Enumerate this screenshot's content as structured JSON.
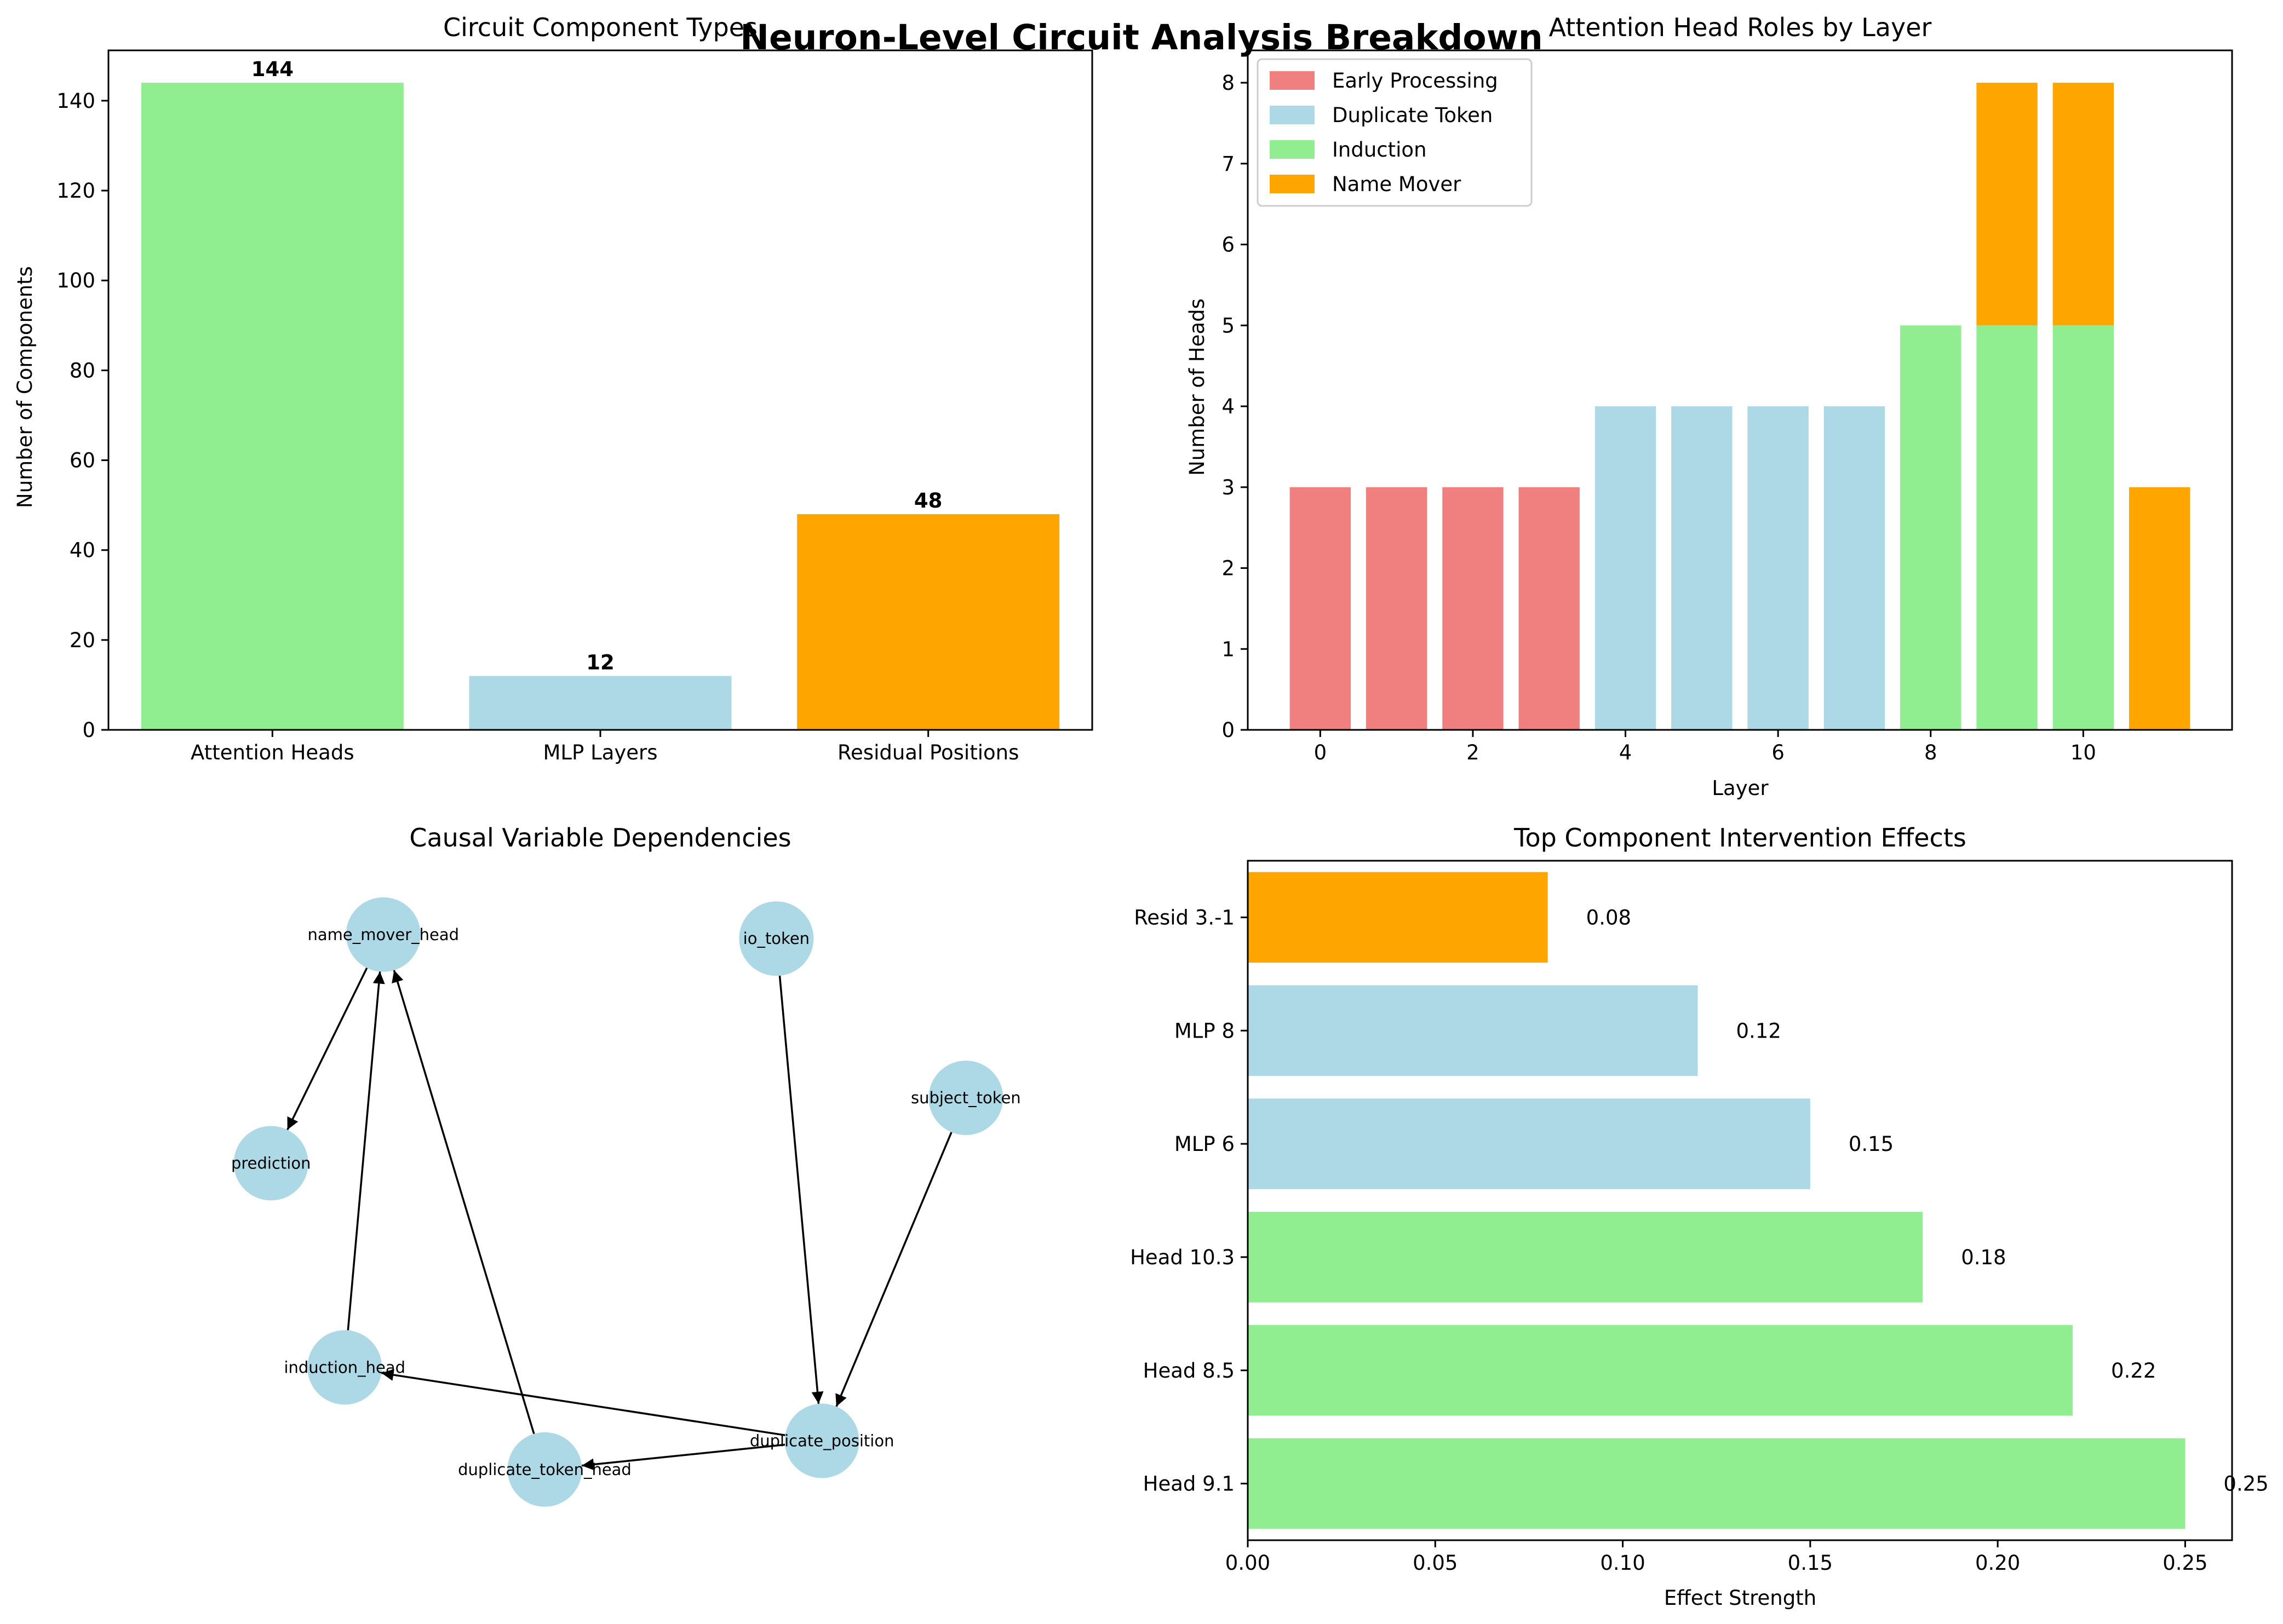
{
  "figure": {
    "suptitle": "Neuron-Level Circuit Analysis Breakdown"
  },
  "chart_data": [
    {
      "type": "bar",
      "title": "Circuit Component Types",
      "xlabel": "",
      "ylabel": "Number of Components",
      "categories": [
        "Attention Heads",
        "MLP Layers",
        "Residual Positions"
      ],
      "values": [
        144,
        12,
        48
      ],
      "value_labels": [
        "144",
        "12",
        "48"
      ],
      "colors": [
        "#90ee90",
        "#add8e6",
        "#ffa500"
      ],
      "ylim": [
        0,
        151.2
      ],
      "yticks": [
        0,
        20,
        40,
        60,
        80,
        100,
        120,
        140
      ],
      "ytick_labels": [
        "0",
        "20",
        "40",
        "60",
        "80",
        "100",
        "120",
        "140"
      ]
    },
    {
      "type": "bar",
      "stacked": true,
      "title": "Attention Head Roles by Layer",
      "xlabel": "Layer",
      "ylabel": "Number of Heads",
      "x": [
        0,
        1,
        2,
        3,
        4,
        5,
        6,
        7,
        8,
        9,
        10,
        11
      ],
      "xlim": [
        -0.95,
        11.95
      ],
      "ylim": [
        0,
        8.4
      ],
      "xticks": [
        0,
        2,
        4,
        6,
        8,
        10
      ],
      "xtick_labels": [
        "0",
        "2",
        "4",
        "6",
        "8",
        "10"
      ],
      "yticks": [
        0,
        1,
        2,
        3,
        4,
        5,
        6,
        7,
        8
      ],
      "ytick_labels": [
        "0",
        "1",
        "2",
        "3",
        "4",
        "5",
        "6",
        "7",
        "8"
      ],
      "legend_position": "top-left",
      "series": [
        {
          "name": "Early Processing",
          "color": "#f08080",
          "values": [
            3,
            3,
            3,
            3,
            0,
            0,
            0,
            0,
            0,
            0,
            0,
            0
          ]
        },
        {
          "name": "Duplicate Token",
          "color": "#add8e6",
          "values": [
            0,
            0,
            0,
            0,
            4,
            4,
            4,
            4,
            0,
            0,
            0,
            0
          ]
        },
        {
          "name": "Induction",
          "color": "#90ee90",
          "values": [
            0,
            0,
            0,
            0,
            0,
            0,
            0,
            0,
            5,
            5,
            5,
            0
          ]
        },
        {
          "name": "Name Mover",
          "color": "#ffa500",
          "values": [
            0,
            0,
            0,
            0,
            0,
            0,
            0,
            0,
            0,
            3,
            3,
            3
          ]
        }
      ]
    },
    {
      "type": "graph",
      "title": "Causal Variable Dependencies",
      "node_color": "#add8e6",
      "nodes": [
        {
          "id": "name_mover_head",
          "x": -0.6,
          "y": 0.95
        },
        {
          "id": "io_token",
          "x": 0.52,
          "y": 0.94
        },
        {
          "id": "subject_token",
          "x": 1.06,
          "y": 0.55
        },
        {
          "id": "prediction",
          "x": -0.92,
          "y": 0.39
        },
        {
          "id": "induction_head",
          "x": -0.71,
          "y": -0.11
        },
        {
          "id": "duplicate_position",
          "x": 0.65,
          "y": -0.29
        },
        {
          "id": "duplicate_token_head",
          "x": -0.14,
          "y": -0.36
        }
      ],
      "xlim": [
        -1.38,
        1.42
      ],
      "ylim": [
        -0.54,
        1.12
      ],
      "edges": [
        [
          "name_mover_head",
          "prediction"
        ],
        [
          "induction_head",
          "name_mover_head"
        ],
        [
          "duplicate_token_head",
          "name_mover_head"
        ],
        [
          "io_token",
          "duplicate_position"
        ],
        [
          "subject_token",
          "duplicate_position"
        ],
        [
          "duplicate_position",
          "induction_head"
        ],
        [
          "duplicate_position",
          "duplicate_token_head"
        ]
      ]
    },
    {
      "type": "bar",
      "orientation": "horizontal",
      "title": "Top Component Intervention Effects",
      "xlabel": "Effect Strength",
      "ylabel": "",
      "categories": [
        "Head 9.1",
        "Head 8.5",
        "Head 10.3",
        "MLP 6",
        "MLP 8",
        "Resid 3.-1"
      ],
      "values": [
        0.25,
        0.22,
        0.18,
        0.15,
        0.12,
        0.08
      ],
      "value_labels": [
        "0.25",
        "0.22",
        "0.18",
        "0.15",
        "0.12",
        "0.08"
      ],
      "colors": [
        "#90ee90",
        "#90ee90",
        "#90ee90",
        "#add8e6",
        "#add8e6",
        "#ffa500"
      ],
      "xlim": [
        0,
        0.2625
      ],
      "xticks": [
        0,
        0.05,
        0.1,
        0.15,
        0.2,
        0.25
      ],
      "xtick_labels": [
        "0.00",
        "0.05",
        "0.10",
        "0.15",
        "0.20",
        "0.25"
      ]
    }
  ]
}
